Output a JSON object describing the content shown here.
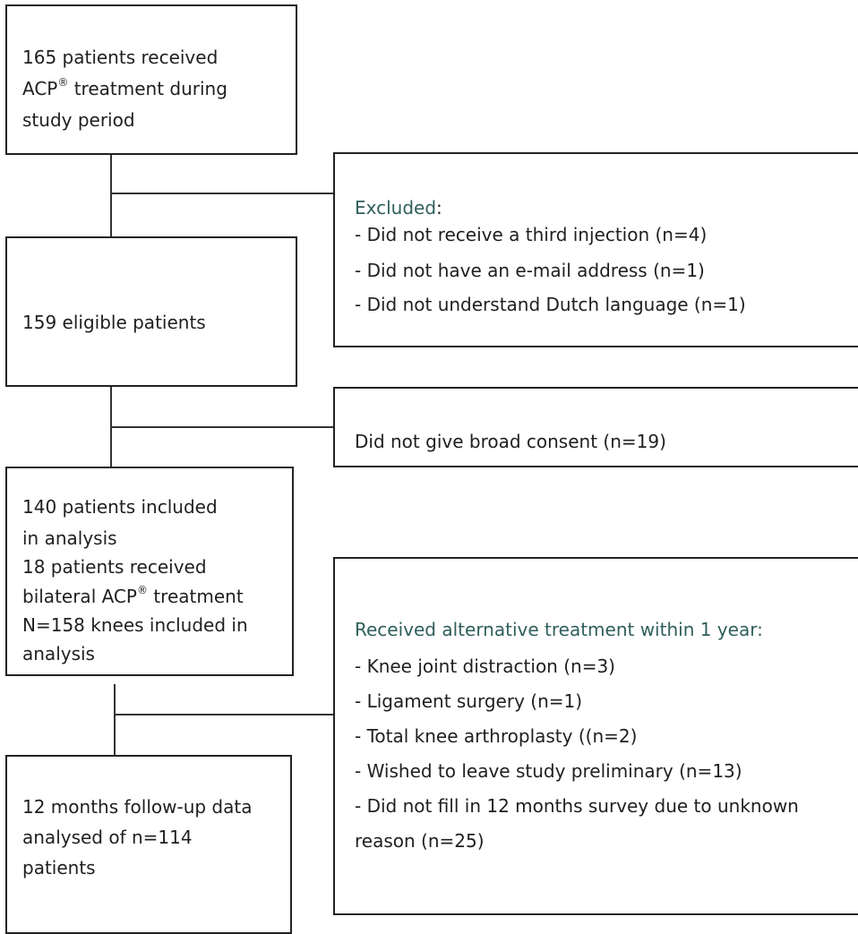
{
  "box1": {
    "line1": "165 patients received",
    "line2_pre": "ACP",
    "line2_sup": "®",
    "line2_post": " treatment during",
    "line3": "study period"
  },
  "excluded": {
    "heading": "Excluded",
    "heading_colon": ":",
    "items": [
      "- Did not receive a third injection (n=4)",
      "- Did not have an e-mail address (n=1)",
      "- Did not understand Dutch language (n=1)"
    ]
  },
  "box2": {
    "line1": "159 eligible patients"
  },
  "consent": {
    "line1": "Did not give broad consent (n=19)"
  },
  "box3": {
    "line1": "140 patients included",
    "line2": "in analysis",
    "line3": "18 patients received",
    "line4_pre": "bilateral ACP",
    "line4_sup": "®",
    "line4_post": " treatment",
    "line5": "N=158 knees included in",
    "line6": "analysis"
  },
  "alternative": {
    "heading": "Received alternative treatment within 1 year:",
    "items": [
      "- Knee joint distraction (n=3)",
      "- Ligament surgery (n=1)",
      "- Total knee arthroplasty ((n=2)",
      "- Wished to leave study preliminary (n=13)",
      "- Did not fill in 12 months survey due to unknown",
      "reason (n=25)"
    ]
  },
  "box4": {
    "line1": "12 months follow-up data",
    "line2": "analysed of n=114",
    "line3": "patients"
  },
  "colors": {
    "border": "#222222",
    "heading_teal": "#2f5f5c",
    "text": "#1f1f1f"
  }
}
